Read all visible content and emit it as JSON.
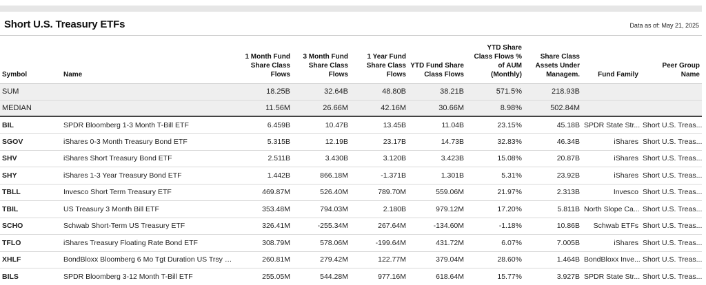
{
  "header": {
    "title": "Short U.S. Treasury ETFs",
    "as_of": "Data as of: May 21, 2025"
  },
  "columns": [
    {
      "key": "symbol",
      "label": "Symbol"
    },
    {
      "key": "name",
      "label": "Name"
    },
    {
      "key": "flow_1m",
      "label": "1 Month Fund Share Class Flows"
    },
    {
      "key": "flow_3m",
      "label": "3 Month Fund Share Class Flows"
    },
    {
      "key": "flow_1y",
      "label": "1 Year Fund Share Class Flows"
    },
    {
      "key": "flow_ytd",
      "label": "YTD Fund Share Class Flows"
    },
    {
      "key": "flow_ytd_pct",
      "label": "YTD Share Class Flows % of AUM (Monthly)"
    },
    {
      "key": "aum",
      "label": "Share Class Assets Under Managem."
    },
    {
      "key": "family",
      "label": "Fund Family"
    },
    {
      "key": "peer_group",
      "label": "Peer Group Name"
    }
  ],
  "summary": [
    {
      "label": "SUM",
      "flow_1m": "18.25B",
      "flow_3m": "32.64B",
      "flow_1y": "48.80B",
      "flow_ytd": "38.21B",
      "flow_ytd_pct": "571.5%",
      "aum": "218.93B"
    },
    {
      "label": "MEDIAN",
      "flow_1m": "11.56M",
      "flow_3m": "26.66M",
      "flow_1y": "42.16M",
      "flow_ytd": "30.66M",
      "flow_ytd_pct": "8.98%",
      "aum": "502.84M"
    }
  ],
  "rows": [
    {
      "symbol": "BIL",
      "name": "SPDR Bloomberg 1-3 Month T-Bill ETF",
      "flow_1m": "6.459B",
      "flow_3m": "10.47B",
      "flow_1y": "13.45B",
      "flow_ytd": "11.04B",
      "flow_ytd_pct": "23.15%",
      "aum": "45.18B",
      "family": "SPDR State Str...",
      "peer_group": "Short U.S. Treas..."
    },
    {
      "symbol": "SGOV",
      "name": "iShares 0-3 Month Treasury Bond ETF",
      "flow_1m": "5.315B",
      "flow_3m": "12.19B",
      "flow_1y": "23.17B",
      "flow_ytd": "14.73B",
      "flow_ytd_pct": "32.83%",
      "aum": "46.34B",
      "family": "iShares",
      "peer_group": "Short U.S. Treas..."
    },
    {
      "symbol": "SHV",
      "name": "iShares Short Treasury Bond ETF",
      "flow_1m": "2.511B",
      "flow_3m": "3.430B",
      "flow_1y": "3.120B",
      "flow_ytd": "3.423B",
      "flow_ytd_pct": "15.08%",
      "aum": "20.87B",
      "family": "iShares",
      "peer_group": "Short U.S. Treas..."
    },
    {
      "symbol": "SHY",
      "name": "iShares 1-3 Year Treasury Bond ETF",
      "flow_1m": "1.442B",
      "flow_3m": "866.18M",
      "flow_1y": "-1.371B",
      "flow_ytd": "1.301B",
      "flow_ytd_pct": "5.31%",
      "aum": "23.92B",
      "family": "iShares",
      "peer_group": "Short U.S. Treas..."
    },
    {
      "symbol": "TBLL",
      "name": "Invesco Short Term Treasury ETF",
      "flow_1m": "469.87M",
      "flow_3m": "526.40M",
      "flow_1y": "789.70M",
      "flow_ytd": "559.06M",
      "flow_ytd_pct": "21.97%",
      "aum": "2.313B",
      "family": "Invesco",
      "peer_group": "Short U.S. Treas..."
    },
    {
      "symbol": "TBIL",
      "name": "US Treasury 3 Month Bill ETF",
      "flow_1m": "353.48M",
      "flow_3m": "794.03M",
      "flow_1y": "2.180B",
      "flow_ytd": "979.12M",
      "flow_ytd_pct": "17.20%",
      "aum": "5.811B",
      "family": "North Slope Ca...",
      "peer_group": "Short U.S. Treas..."
    },
    {
      "symbol": "SCHO",
      "name": "Schwab Short-Term US Treasury ETF",
      "flow_1m": "326.41M",
      "flow_3m": "-255.34M",
      "flow_1y": "267.64M",
      "flow_ytd": "-134.60M",
      "flow_ytd_pct": "-1.18%",
      "aum": "10.86B",
      "family": "Schwab ETFs",
      "peer_group": "Short U.S. Treas..."
    },
    {
      "symbol": "TFLO",
      "name": "iShares Treasury Floating Rate Bond ETF",
      "flow_1m": "308.79M",
      "flow_3m": "578.06M",
      "flow_1y": "-199.64M",
      "flow_ytd": "431.72M",
      "flow_ytd_pct": "6.07%",
      "aum": "7.005B",
      "family": "iShares",
      "peer_group": "Short U.S. Treas..."
    },
    {
      "symbol": "XHLF",
      "name": "BondBloxx Bloomberg 6 Mo Tgt Duration US Trsy ETF",
      "flow_1m": "260.81M",
      "flow_3m": "279.42M",
      "flow_1y": "122.77M",
      "flow_ytd": "379.04M",
      "flow_ytd_pct": "28.60%",
      "aum": "1.464B",
      "family": "BondBloxx Inve...",
      "peer_group": "Short U.S. Treas..."
    },
    {
      "symbol": "BILS",
      "name": "SPDR Bloomberg 3-12 Month T-Bill ETF",
      "flow_1m": "255.05M",
      "flow_3m": "544.28M",
      "flow_1y": "977.16M",
      "flow_ytd": "618.64M",
      "flow_ytd_pct": "15.77%",
      "aum": "3.927B",
      "family": "SPDR State Str...",
      "peer_group": "Short U.S. Treas..."
    }
  ]
}
